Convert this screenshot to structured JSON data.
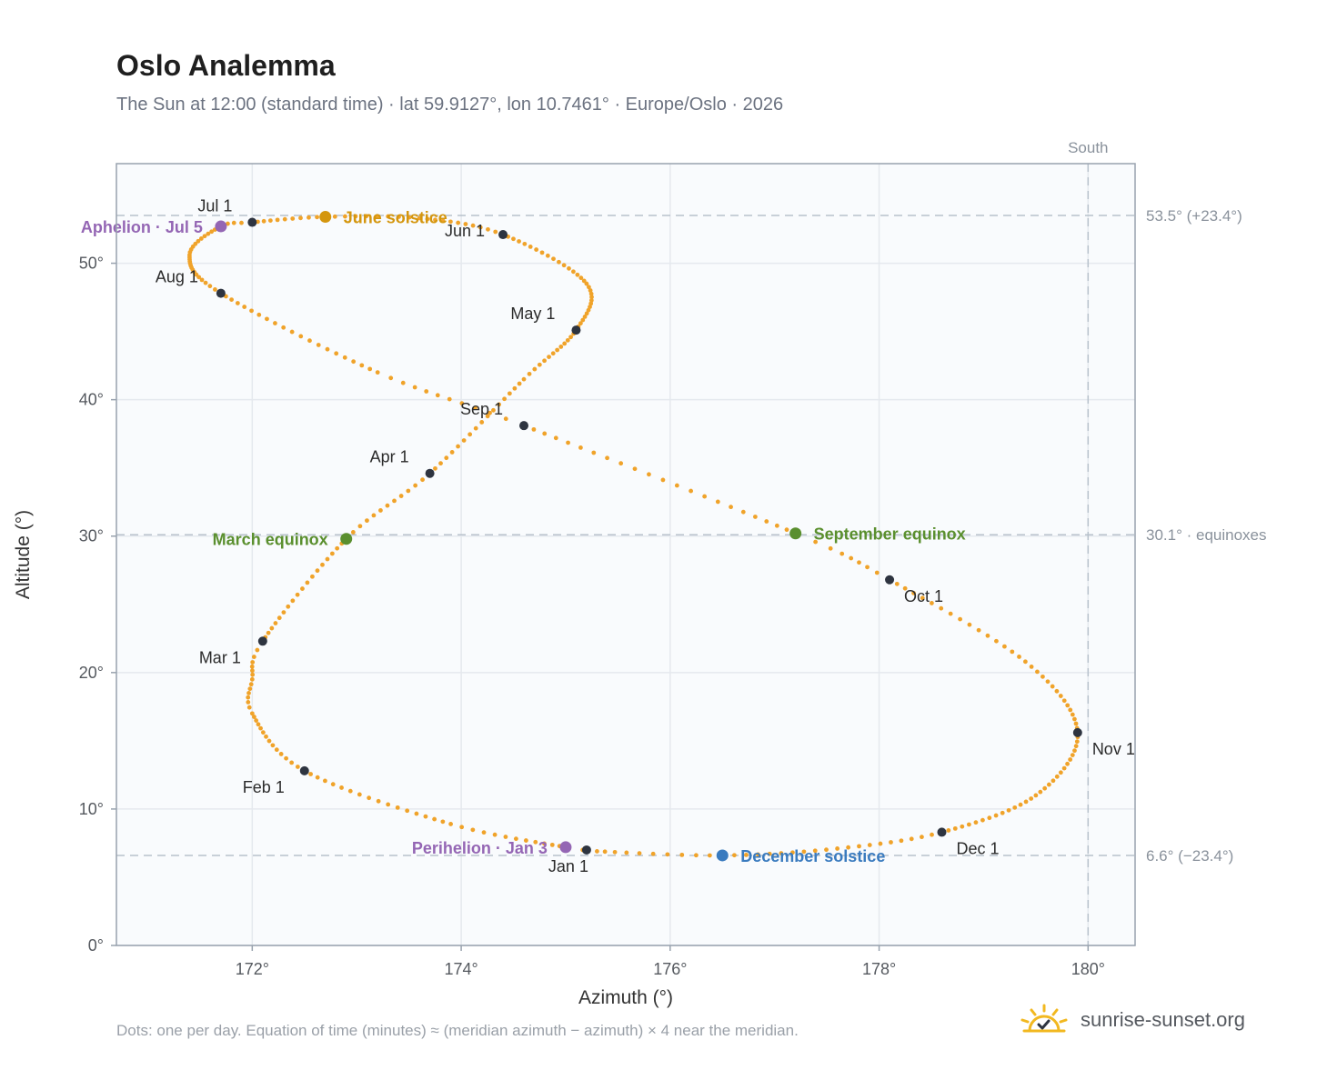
{
  "header": {
    "title": "Oslo Analemma",
    "subtitle": "The Sun at 12:00 (standard time) · lat 59.9127°, lon 10.7461° · Europe/Oslo · 2026"
  },
  "footer": {
    "note": "Dots: one per day. Equation of time (minutes) ≈ (meridian azimuth − azimuth) × 4 near the meridian.",
    "brand": "sunrise-sunset.org"
  },
  "colors": {
    "curve": "#f0a32a",
    "month_dot": "#2e3440",
    "solstice_june": "#d4960e",
    "solstice_december": "#3a7bbf",
    "equinox": "#5a8f2e",
    "apsis": "#9466b4",
    "reference_line": "#b8c2cc",
    "plot_bg": "#f9fbfd"
  },
  "chart_data": {
    "type": "scatter",
    "xlabel": "Azimuth (°)",
    "ylabel": "Altitude (°)",
    "xlim": [
      170.7,
      180.45
    ],
    "ylim": [
      0,
      57.3
    ],
    "x_ticks": [
      172,
      174,
      176,
      178,
      180
    ],
    "x_tick_labels": [
      "172°",
      "174°",
      "176°",
      "178°",
      "180°"
    ],
    "y_ticks": [
      0,
      10,
      20,
      30,
      40,
      50
    ],
    "y_tick_labels": [
      "0°",
      "10°",
      "20°",
      "30°",
      "40°",
      "50°"
    ],
    "grid": true,
    "meridian": {
      "azimuth": 180,
      "label": "South"
    },
    "reference_lines": [
      {
        "altitude": 53.5,
        "label": "53.5° (+23.4°)"
      },
      {
        "altitude": 30.1,
        "label": "30.1° · equinoxes"
      },
      {
        "altitude": 6.6,
        "label": "6.6° (−23.4°)"
      }
    ],
    "month_markers": [
      {
        "label": "Jan 1",
        "az": 175.2,
        "alt": 7.0
      },
      {
        "label": "Feb 1",
        "az": 172.5,
        "alt": 12.8
      },
      {
        "label": "Mar 1",
        "az": 172.1,
        "alt": 22.3
      },
      {
        "label": "Apr 1",
        "az": 173.7,
        "alt": 34.6
      },
      {
        "label": "May 1",
        "az": 175.1,
        "alt": 45.1
      },
      {
        "label": "Jun 1",
        "az": 174.4,
        "alt": 52.1
      },
      {
        "label": "Jul 1",
        "az": 172.0,
        "alt": 53.0
      },
      {
        "label": "Aug 1",
        "az": 171.7,
        "alt": 47.8
      },
      {
        "label": "Sep 1",
        "az": 174.6,
        "alt": 38.1
      },
      {
        "label": "Oct 1",
        "az": 178.1,
        "alt": 26.8
      },
      {
        "label": "Nov 1",
        "az": 179.9,
        "alt": 15.6
      },
      {
        "label": "Dec 1",
        "az": 178.6,
        "alt": 8.3
      }
    ],
    "events": [
      {
        "label": "June solstice",
        "az": 172.7,
        "alt": 53.4,
        "color": "#d4960e"
      },
      {
        "label": "December solstice",
        "az": 176.5,
        "alt": 6.6,
        "color": "#3a7bbf"
      },
      {
        "label": "March equinox",
        "az": 172.9,
        "alt": 29.8,
        "color": "#5a8f2e"
      },
      {
        "label": "September equinox",
        "az": 177.2,
        "alt": 30.2,
        "color": "#5a8f2e"
      },
      {
        "label": "Aphelion · Jul 5",
        "az": 171.7,
        "alt": 52.7,
        "color": "#9466b4"
      },
      {
        "label": "Perihelion · Jan 3",
        "az": 175.0,
        "alt": 7.2,
        "color": "#9466b4"
      }
    ],
    "curve_samples": [
      {
        "day": 1,
        "az": 175.2,
        "alt": 7.0
      },
      {
        "day": 3,
        "az": 175.0,
        "alt": 7.2
      },
      {
        "day": 15,
        "az": 173.9,
        "alt": 8.9
      },
      {
        "day": 32,
        "az": 172.5,
        "alt": 12.8
      },
      {
        "day": 46,
        "az": 172.0,
        "alt": 17.0
      },
      {
        "day": 53,
        "az": 172.0,
        "alt": 19.5
      },
      {
        "day": 60,
        "az": 172.1,
        "alt": 22.3
      },
      {
        "day": 79,
        "az": 172.9,
        "alt": 29.8
      },
      {
        "day": 91,
        "az": 173.7,
        "alt": 34.6
      },
      {
        "day": 108,
        "az": 174.6,
        "alt": 41.5
      },
      {
        "day": 121,
        "az": 175.1,
        "alt": 45.1
      },
      {
        "day": 135,
        "az": 175.2,
        "alt": 48.5
      },
      {
        "day": 152,
        "az": 174.4,
        "alt": 52.1
      },
      {
        "day": 163,
        "az": 173.6,
        "alt": 53.3
      },
      {
        "day": 172,
        "az": 172.7,
        "alt": 53.4
      },
      {
        "day": 182,
        "az": 172.0,
        "alt": 53.0
      },
      {
        "day": 186,
        "az": 171.7,
        "alt": 52.7
      },
      {
        "day": 198,
        "az": 171.4,
        "alt": 50.6
      },
      {
        "day": 213,
        "az": 171.7,
        "alt": 47.8
      },
      {
        "day": 233,
        "az": 173.2,
        "alt": 42.0
      },
      {
        "day": 244,
        "az": 174.6,
        "alt": 38.1
      },
      {
        "day": 266,
        "az": 177.2,
        "alt": 30.2
      },
      {
        "day": 274,
        "az": 178.1,
        "alt": 26.8
      },
      {
        "day": 290,
        "az": 179.4,
        "alt": 20.8
      },
      {
        "day": 305,
        "az": 179.9,
        "alt": 15.6
      },
      {
        "day": 320,
        "az": 179.5,
        "alt": 11.0
      },
      {
        "day": 335,
        "az": 178.6,
        "alt": 8.3
      },
      {
        "day": 345,
        "az": 177.6,
        "alt": 7.1
      },
      {
        "day": 355,
        "az": 176.5,
        "alt": 6.6
      },
      {
        "day": 365,
        "az": 175.3,
        "alt": 6.9
      }
    ]
  }
}
